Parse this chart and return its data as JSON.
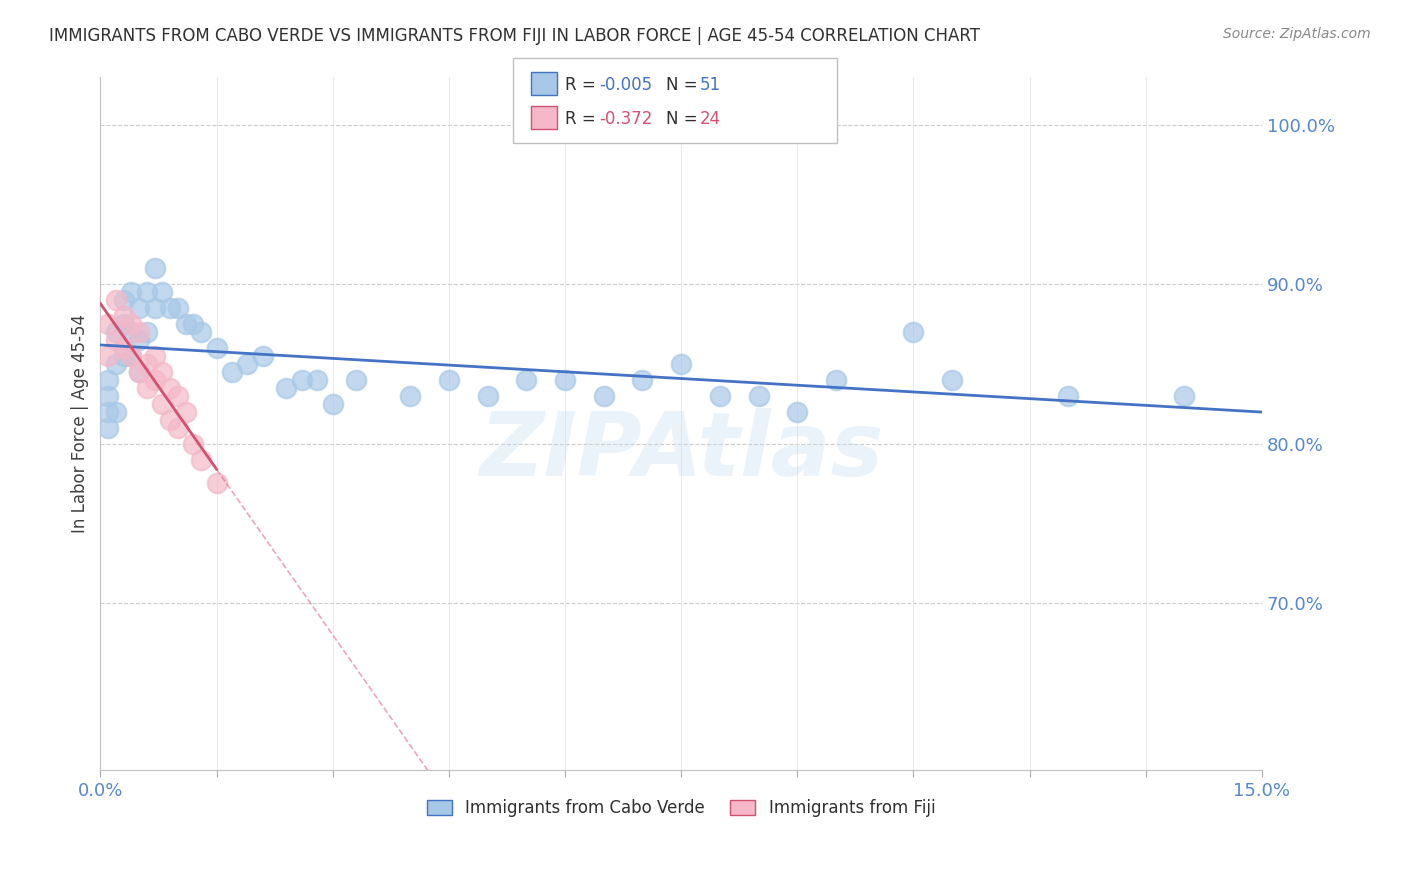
{
  "title": "IMMIGRANTS FROM CABO VERDE VS IMMIGRANTS FROM FIJI IN LABOR FORCE | AGE 45-54 CORRELATION CHART",
  "source": "Source: ZipAtlas.com",
  "ylabel": "In Labor Force | Age 45-54",
  "xmin": 0.0,
  "xmax": 0.15,
  "ymin": 0.595,
  "ymax": 1.03,
  "cabo_verde_R": -0.005,
  "cabo_verde_N": 51,
  "fiji_R": -0.372,
  "fiji_N": 24,
  "cabo_verde_color": "#a8c8e8",
  "fiji_color": "#f4b8c8",
  "cabo_verde_line_color": "#4472c4",
  "fiji_line_color": "#d45070",
  "watermark": "ZIPAtlas",
  "background_color": "#ffffff",
  "grid_color": "#cccccc",
  "title_color": "#303030",
  "axis_label_color": "#5588cc",
  "cabo_verde_x": [
    0.001,
    0.001,
    0.001,
    0.001,
    0.002,
    0.002,
    0.002,
    0.003,
    0.003,
    0.003,
    0.004,
    0.004,
    0.004,
    0.005,
    0.005,
    0.005,
    0.006,
    0.006,
    0.007,
    0.007,
    0.008,
    0.009,
    0.01,
    0.011,
    0.012,
    0.013,
    0.015,
    0.017,
    0.019,
    0.021,
    0.024,
    0.026,
    0.028,
    0.03,
    0.033,
    0.04,
    0.045,
    0.05,
    0.055,
    0.06,
    0.065,
    0.07,
    0.075,
    0.08,
    0.085,
    0.09,
    0.095,
    0.105,
    0.11,
    0.125,
    0.14
  ],
  "cabo_verde_y": [
    0.84,
    0.83,
    0.82,
    0.81,
    0.87,
    0.85,
    0.82,
    0.89,
    0.875,
    0.855,
    0.895,
    0.87,
    0.855,
    0.885,
    0.865,
    0.845,
    0.895,
    0.87,
    0.91,
    0.885,
    0.895,
    0.885,
    0.885,
    0.875,
    0.875,
    0.87,
    0.86,
    0.845,
    0.85,
    0.855,
    0.835,
    0.84,
    0.84,
    0.825,
    0.84,
    0.83,
    0.84,
    0.83,
    0.84,
    0.84,
    0.83,
    0.84,
    0.85,
    0.83,
    0.83,
    0.82,
    0.84,
    0.87,
    0.84,
    0.83,
    0.83
  ],
  "fiji_x": [
    0.001,
    0.001,
    0.002,
    0.002,
    0.003,
    0.003,
    0.004,
    0.004,
    0.005,
    0.005,
    0.006,
    0.006,
    0.007,
    0.007,
    0.008,
    0.008,
    0.009,
    0.009,
    0.01,
    0.01,
    0.011,
    0.012,
    0.013,
    0.015
  ],
  "fiji_y": [
    0.875,
    0.855,
    0.89,
    0.865,
    0.88,
    0.86,
    0.875,
    0.855,
    0.87,
    0.845,
    0.85,
    0.835,
    0.855,
    0.84,
    0.845,
    0.825,
    0.835,
    0.815,
    0.83,
    0.81,
    0.82,
    0.8,
    0.79,
    0.775
  ]
}
